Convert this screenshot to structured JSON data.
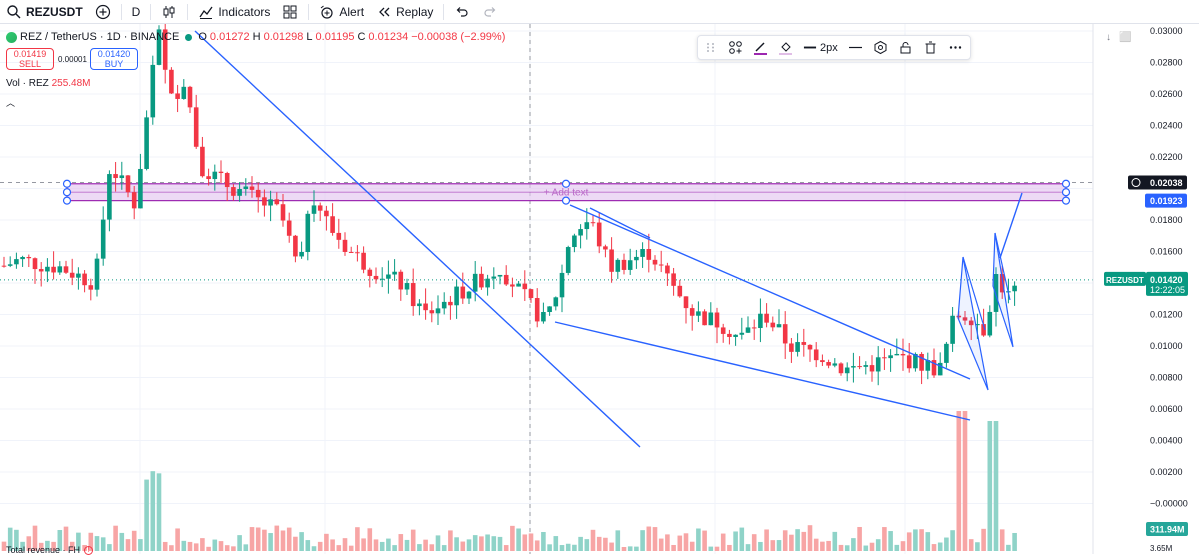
{
  "toolbar": {
    "symbol": "REZUSDT",
    "interval": "D",
    "indicators_label": "Indicators",
    "alert_label": "Alert",
    "replay_label": "Replay"
  },
  "legend": {
    "title": "REZ / TetherUS · 1D · BINANCE",
    "open_label": "O",
    "open": "0.01272",
    "high_label": "H",
    "high": "0.01298",
    "low_label": "L",
    "low": "0.01195",
    "close_label": "C",
    "close": "0.01234",
    "change": "−0.00038 (−2.99%)"
  },
  "quote": {
    "sell_price": "0.01419",
    "sell_label": "SELL",
    "spread": "0.00001",
    "buy_price": "0.01420",
    "buy_label": "BUY"
  },
  "volume_legend": {
    "label": "Vol · REZ",
    "value": "255.48M"
  },
  "drawing_toolbar": {
    "width_label": "2px"
  },
  "annotation": {
    "add_text": "+ Add text"
  },
  "bottom": {
    "label": "Total revenue · FH",
    "warning": "!",
    "vol_label": "3.65M"
  },
  "price_axis": {
    "ticks": [
      "0.03000",
      "0.02800",
      "0.02600",
      "0.02400",
      "0.02200",
      "0.01800",
      "0.01600",
      "0.01200",
      "0.01000",
      "0.00800",
      "0.00600",
      "0.00400",
      "0.00200",
      "−0.00000"
    ],
    "crosshair_price": "0.02038",
    "rect_bottom_price": "0.01923",
    "symbol_tag": "REZUSDT",
    "last_price": "0.01420",
    "countdown": "12:22:05",
    "volume_tag": "311.94M"
  },
  "colors": {
    "up": "#089981",
    "down": "#f23645",
    "vol_up": "#8fd3c8",
    "vol_down": "#f7a5a5",
    "trend": "#2962ff",
    "rect_fill": "#e3c6ef",
    "rect_border": "#9c27b0"
  }
}
